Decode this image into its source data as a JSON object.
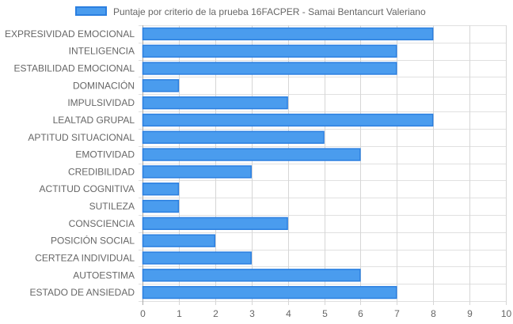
{
  "chart_data": {
    "type": "bar",
    "orientation": "horizontal",
    "categories": [
      "EXPRESIVIDAD EMOCIONAL",
      "INTELIGENCIA",
      "ESTABILIDAD EMOCIONAL",
      "DOMINACIÓN",
      "IMPULSIVIDAD",
      "LEALTAD GRUPAL",
      "APTITUD SITUACIONAL",
      "EMOTIVIDAD",
      "CREDIBILIDAD",
      "ACTITUD COGNITIVA",
      "SUTILEZA",
      "CONSCIENCIA",
      "POSICIÓN SOCIAL",
      "CERTEZA INDIVIDUAL",
      "AUTOESTIMA",
      "ESTADO DE ANSIEDAD"
    ],
    "series": [
      {
        "name": "Puntaje por criterio de la prueba 16FACPER - Samai Bentancurt Valeriano",
        "values": [
          8,
          7,
          7,
          1,
          4,
          8,
          5,
          6,
          3,
          1,
          1,
          4,
          2,
          3,
          6,
          7
        ]
      }
    ],
    "xlim": [
      0,
      10
    ],
    "xticks": [
      0,
      1,
      2,
      3,
      4,
      5,
      6,
      7,
      8,
      9,
      10
    ],
    "grid": true,
    "legend_position": "top",
    "colors": {
      "bar_fill": "#4a9cee",
      "bar_border": "#2b7fe0",
      "grid": "#e0e0e0",
      "axis": "#aaaaaa",
      "label": "#666666"
    }
  }
}
